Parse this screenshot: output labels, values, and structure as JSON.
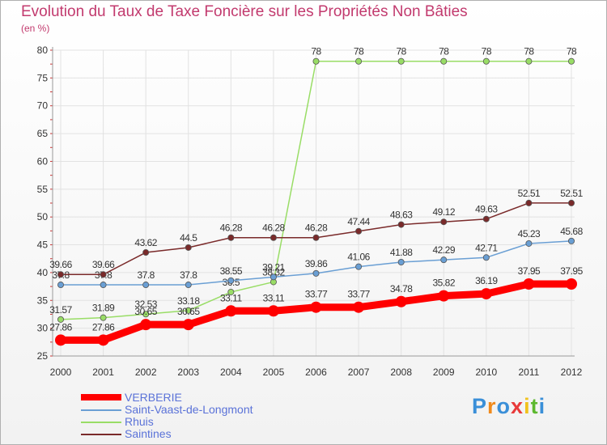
{
  "chart_data": {
    "type": "line",
    "title": "Evolution du Taux de Taxe Foncière sur les Propriétés Non Bâties",
    "ylabel": "(en %)",
    "xlabel": "",
    "x": [
      "2000",
      "2001",
      "2002",
      "2003",
      "2004",
      "2005",
      "2006",
      "2007",
      "2008",
      "2009",
      "2010",
      "2011",
      "2012"
    ],
    "ylim": [
      25,
      80
    ],
    "yticks": [
      25,
      30,
      35,
      40,
      45,
      50,
      55,
      60,
      65,
      70,
      75,
      80
    ],
    "series": [
      {
        "name": "VERBERIE",
        "color": "#ff0000",
        "values": [
          27.86,
          27.86,
          30.65,
          30.65,
          33.11,
          33.11,
          33.77,
          33.77,
          34.78,
          35.82,
          36.19,
          37.95,
          37.95
        ],
        "labels": [
          "27.86",
          "27.86",
          "30.65",
          "30.65",
          "33.11",
          "33.11",
          "33.77",
          "33.77",
          "34.78",
          "35.82",
          "36.19",
          "37.95",
          "37.95"
        ]
      },
      {
        "name": "Saint-Vaast-de-Longmont",
        "color": "#6a9fd4",
        "values": [
          37.8,
          37.8,
          37.8,
          37.8,
          38.55,
          39.21,
          39.86,
          41.06,
          41.88,
          42.29,
          42.71,
          45.23,
          45.68
        ],
        "labels": [
          "37.8",
          "37.8",
          "37.8",
          "37.8",
          "38.55",
          "39.21",
          "39.86",
          "41.06",
          "41.88",
          "42.29",
          "42.71",
          "45.23",
          "45.68"
        ]
      },
      {
        "name": "Rhuis",
        "color": "#99dd66",
        "values": [
          31.57,
          31.89,
          32.53,
          33.18,
          36.5,
          38.32,
          78,
          78,
          78,
          78,
          78,
          78,
          78
        ],
        "labels": [
          "31.57",
          "31.89",
          "32.53",
          "33.18",
          "36.5",
          "38.32",
          "78",
          "78",
          "78",
          "78",
          "78",
          "78",
          "78"
        ]
      },
      {
        "name": "Saintines",
        "color": "#7a2a2a",
        "values": [
          39.66,
          39.66,
          43.62,
          44.5,
          46.28,
          46.28,
          46.28,
          47.44,
          48.63,
          49.12,
          49.63,
          52.51,
          52.51
        ],
        "labels": [
          "39.66",
          "39.66",
          "43.62",
          "44.5",
          "46.28",
          "46.28",
          "46.28",
          "47.44",
          "48.63",
          "49.12",
          "49.63",
          "52.51",
          "52.51"
        ]
      }
    ]
  },
  "legend": [
    {
      "label": "VERBERIE",
      "color": "#ff0000"
    },
    {
      "label": "Saint-Vaast-de-Longmont",
      "color": "#6a9fd4"
    },
    {
      "label": "Rhuis",
      "color": "#99dd66"
    },
    {
      "label": "Saintines",
      "color": "#7a2a2a"
    }
  ],
  "logo": {
    "letters": [
      "P",
      "r",
      "o",
      "x",
      "i",
      "t",
      "i"
    ],
    "colors": [
      "#3a8fd8",
      "#f08a1c",
      "#3a8fd8",
      "#e83a3a",
      "#f0c21c",
      "#5cb82e",
      "#3a8fd8"
    ]
  }
}
